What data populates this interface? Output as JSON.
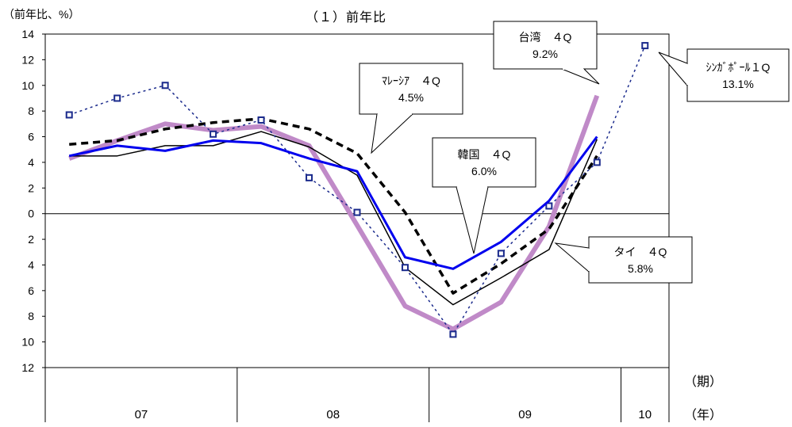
{
  "unit_label": "（前年比、%）",
  "title": "（１）前年比",
  "period_label": "（期）",
  "year_label": "（年）",
  "chart_data": {
    "type": "line",
    "title": "（１）前年比",
    "ylabel": "（前年比、%）",
    "ylim": [
      -12,
      14
    ],
    "yticks": [
      14,
      12,
      10,
      8,
      6,
      4,
      2,
      0,
      -2,
      -4,
      -6,
      -8,
      -10,
      -12
    ],
    "ytick_labels": [
      "14",
      "12",
      "10",
      "8",
      "6",
      "4",
      "2",
      "0",
      "2",
      "4",
      "6",
      "8",
      "10",
      "12"
    ],
    "x": [
      "07Q1",
      "07Q2",
      "07Q3",
      "07Q4",
      "08Q1",
      "08Q2",
      "08Q3",
      "08Q4",
      "09Q1",
      "09Q2",
      "09Q3",
      "09Q4",
      "10Q1"
    ],
    "years": [
      {
        "label": "07",
        "quarters": 4
      },
      {
        "label": "08",
        "quarters": 4
      },
      {
        "label": "09",
        "quarters": 4
      },
      {
        "label": "10",
        "quarters": 1
      }
    ],
    "series": [
      {
        "key": "korea",
        "color": "#0000ee",
        "style": "solid-thick",
        "values": [
          4.5,
          5.3,
          4.9,
          5.7,
          5.5,
          4.3,
          3.3,
          -3.4,
          -4.3,
          -2.2,
          1.0,
          6.0,
          null
        ]
      },
      {
        "key": "taiwan",
        "color": "#c08ac8",
        "style": "band",
        "values": [
          4.3,
          5.7,
          7.0,
          6.5,
          6.8,
          5.3,
          -0.9,
          -7.2,
          -9.0,
          -6.9,
          -1.0,
          9.2,
          null
        ]
      },
      {
        "key": "thailand",
        "color": "#000000",
        "style": "solid-thin",
        "values": [
          4.5,
          4.5,
          5.3,
          5.3,
          6.4,
          5.2,
          3.0,
          -4.2,
          -7.1,
          -5.0,
          -2.8,
          5.8,
          null
        ]
      },
      {
        "key": "malaysia",
        "color": "#000000",
        "style": "dashed-thick",
        "values": [
          5.4,
          5.7,
          6.6,
          7.1,
          7.4,
          6.6,
          4.7,
          0.1,
          -6.2,
          -3.9,
          -1.2,
          4.5,
          null
        ]
      },
      {
        "key": "singapore",
        "color": "#1a2a8c",
        "style": "dotted-markers",
        "values": [
          7.7,
          9.0,
          10.0,
          6.2,
          7.3,
          2.8,
          0.1,
          -4.2,
          -9.4,
          -3.1,
          0.6,
          4.0,
          13.1
        ]
      }
    ],
    "annotations": [
      {
        "key": "taiwan",
        "line1": "台湾　４Q",
        "line2": "9.2%"
      },
      {
        "key": "singapore",
        "line1": "ｼﾝｶﾞﾎﾟｰﾙ１Q",
        "line2": "13.1%"
      },
      {
        "key": "malaysia",
        "line1": "ﾏﾚｰｼｱ　４Q",
        "line2": "4.5%"
      },
      {
        "key": "korea",
        "line1": "韓国　４Q",
        "line2": "6.0%"
      },
      {
        "key": "thailand",
        "line1": "タイ　４Q",
        "line2": "5.8%"
      }
    ]
  }
}
